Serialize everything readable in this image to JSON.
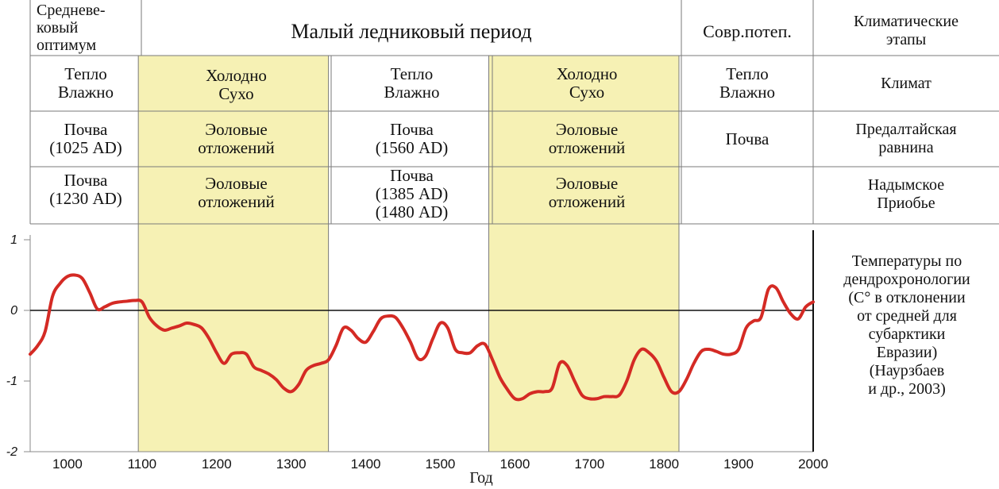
{
  "table": {
    "header": {
      "col1": "Средневе-\nковый\nоптимум",
      "col_lia": "Малый ледниковый период",
      "col_modern": "Совр.потеп.",
      "col_label": "Климатические\nэтапы"
    },
    "rows": [
      {
        "label": "Климат",
        "cells": [
          "Тепло\nВлажно",
          "Холодно\nСухо",
          "Тепло\nВлажно",
          "Холодно\nСухо",
          "Тепло\nВлажно"
        ]
      },
      {
        "label": "Предалтайская\nравнина",
        "cells": [
          "Почва\n(1025 AD)",
          "Эоловые\nотложений",
          "Почва\n(1560 AD)",
          "Эоловые\nотложений",
          "Почва"
        ]
      },
      {
        "label": "Надымское\nПриобье",
        "cells": [
          "Почва\n(1230 AD)",
          "Эоловые\nотложений",
          "Почва\n(1385 AD)\n(1480 AD)",
          "Эоловые\nотложений",
          ""
        ]
      }
    ]
  },
  "chart_label": "Температуры по\nдендрохронологии\n(C° в отклонении\nот средней для\nсубарктики\nЕвразии)\n(Наурзбаев\nи др., 2003)",
  "colors": {
    "line": "#d42a24",
    "shade": "#f6f1b4",
    "grid": "#7a7a7a",
    "axis": "#111111"
  },
  "chart_data": {
    "type": "line",
    "xlabel": "Год",
    "ylabel": "",
    "xlim": [
      950,
      2000
    ],
    "ylim": [
      -2,
      1
    ],
    "xticks": [
      1000,
      1100,
      1200,
      1300,
      1400,
      1500,
      1600,
      1700,
      1800,
      1900,
      2000
    ],
    "yticks": [
      1,
      0,
      -1,
      -2
    ],
    "shaded_periods": [
      [
        1095,
        1350
      ],
      [
        1565,
        1820
      ]
    ],
    "series": [
      {
        "name": "",
        "x": [
          950,
          960,
          970,
          980,
          990,
          1000,
          1010,
          1020,
          1030,
          1040,
          1050,
          1060,
          1070,
          1080,
          1090,
          1100,
          1110,
          1120,
          1130,
          1140,
          1150,
          1160,
          1170,
          1180,
          1190,
          1200,
          1210,
          1220,
          1230,
          1240,
          1250,
          1260,
          1270,
          1280,
          1290,
          1300,
          1310,
          1320,
          1330,
          1340,
          1350,
          1360,
          1370,
          1380,
          1390,
          1400,
          1410,
          1420,
          1430,
          1440,
          1450,
          1460,
          1470,
          1480,
          1490,
          1500,
          1510,
          1520,
          1530,
          1540,
          1550,
          1560,
          1570,
          1580,
          1590,
          1600,
          1610,
          1620,
          1630,
          1640,
          1650,
          1660,
          1670,
          1680,
          1690,
          1700,
          1710,
          1720,
          1730,
          1740,
          1750,
          1760,
          1770,
          1780,
          1790,
          1800,
          1810,
          1820,
          1830,
          1840,
          1850,
          1860,
          1870,
          1880,
          1890,
          1900,
          1910,
          1920,
          1930,
          1940,
          1950,
          1960,
          1970,
          1980,
          1990,
          2000
        ],
        "values": [
          -0.62,
          -0.5,
          -0.3,
          0.2,
          0.38,
          0.48,
          0.5,
          0.45,
          0.25,
          0.02,
          0.05,
          0.1,
          0.12,
          0.13,
          0.14,
          0.12,
          -0.1,
          -0.22,
          -0.28,
          -0.25,
          -0.22,
          -0.18,
          -0.2,
          -0.25,
          -0.4,
          -0.6,
          -0.75,
          -0.62,
          -0.6,
          -0.62,
          -0.8,
          -0.85,
          -0.9,
          -0.98,
          -1.1,
          -1.15,
          -1.05,
          -0.85,
          -0.78,
          -0.75,
          -0.7,
          -0.5,
          -0.25,
          -0.28,
          -0.4,
          -0.45,
          -0.3,
          -0.12,
          -0.08,
          -0.1,
          -0.25,
          -0.45,
          -0.68,
          -0.65,
          -0.4,
          -0.18,
          -0.25,
          -0.55,
          -0.6,
          -0.6,
          -0.5,
          -0.48,
          -0.7,
          -0.95,
          -1.12,
          -1.25,
          -1.25,
          -1.18,
          -1.15,
          -1.15,
          -1.1,
          -0.75,
          -0.78,
          -1.0,
          -1.2,
          -1.25,
          -1.25,
          -1.22,
          -1.22,
          -1.2,
          -1.0,
          -0.7,
          -0.55,
          -0.6,
          -0.72,
          -0.95,
          -1.15,
          -1.15,
          -0.98,
          -0.75,
          -0.58,
          -0.55,
          -0.58,
          -0.62,
          -0.62,
          -0.55,
          -0.25,
          -0.15,
          -0.1,
          0.3,
          0.32,
          0.12,
          -0.05,
          -0.12,
          0.05,
          0.12
        ]
      }
    ]
  }
}
